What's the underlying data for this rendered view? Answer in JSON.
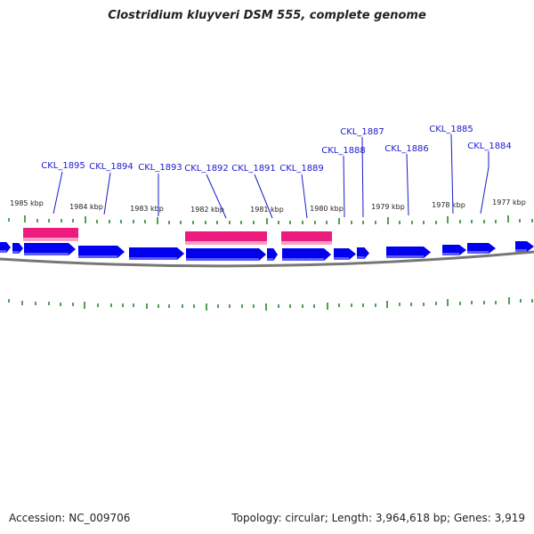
{
  "title": "Clostridium kluyveri DSM 555, complete genome",
  "footer": {
    "accession": "Accession: NC_009706",
    "summary": "Topology: circular; Length: 3,964,618 bp; Genes: 3,919"
  },
  "colors": {
    "gene": "#0000ee",
    "highlight": "#ee1b7e",
    "tick": "#1a7f1a",
    "label": "#1a1acc",
    "backbone": "#777777"
  },
  "kbp_labels": [
    "1985 kbp",
    "1984 kbp",
    "1983 kbp",
    "1982 kbp",
    "1981 kbp",
    "1980 kbp",
    "1979 kbp",
    "1978 kbp",
    "1977 kbp"
  ],
  "gene_labels": [
    "CKL_1895",
    "CKL_1894",
    "CKL_1893",
    "CKL_1892",
    "CKL_1891",
    "CKL_1889",
    "CKL_1888",
    "CKL_1887",
    "CKL_1886",
    "CKL_1885",
    "CKL_1884"
  ]
}
